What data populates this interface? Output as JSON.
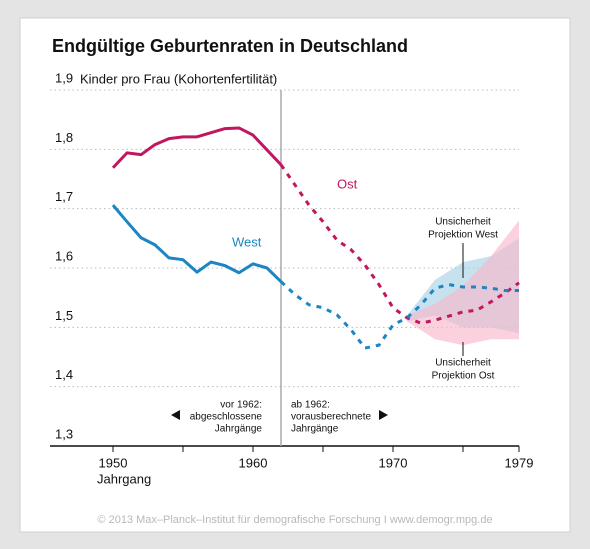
{
  "chart_data": {
    "type": "line",
    "title": "Endgültige Geburtenraten in Deutschland",
    "y_label": "Kinder pro Frau (Kohortenfertilität)",
    "x_label": "Jahrgang",
    "source": "© 2013 Max–Planck–Institut für demografische Forschung I www.demogr.mpg.de",
    "xlim": [
      1945.5,
      1979
    ],
    "xticks": [
      1950,
      1960,
      1970,
      1979
    ],
    "x_minor_ticks": [
      1955,
      1965,
      1975
    ],
    "ylim": [
      1.3,
      1.9
    ],
    "yticks": [
      {
        "value": 1.3,
        "label": "1,3"
      },
      {
        "value": 1.4,
        "label": "1,4"
      },
      {
        "value": 1.5,
        "label": "1,5"
      },
      {
        "value": 1.6,
        "label": "1,6"
      },
      {
        "value": 1.7,
        "label": "1,7"
      },
      {
        "value": 1.8,
        "label": "1,8"
      },
      {
        "value": 1.9,
        "label": "1,9"
      }
    ],
    "grid": true,
    "divider": 1962,
    "divider_notes": [
      {
        "lines": [
          "vor 1962:",
          "abgeschlossene",
          "Jahrgänge"
        ]
      },
      {
        "lines": [
          "ab 1962:",
          "vorausberechnete",
          "Jahrgänge"
        ]
      }
    ],
    "x": [
      1950,
      1951,
      1952,
      1953,
      1954,
      1955,
      1956,
      1957,
      1958,
      1959,
      1960,
      1961,
      1962,
      1963,
      1964,
      1965,
      1966,
      1967,
      1968,
      1969,
      1970,
      1971,
      1972,
      1973,
      1974,
      1975,
      1976,
      1977,
      1978,
      1979
    ],
    "series": [
      {
        "name": "Ost",
        "color": "#c0175e",
        "values": [
          1.769,
          1.794,
          1.791,
          1.808,
          1.818,
          1.821,
          1.821,
          1.828,
          1.835,
          1.836,
          1.824,
          1.799,
          1.774,
          1.74,
          1.706,
          1.678,
          1.647,
          1.631,
          1.605,
          1.572,
          1.533,
          1.516,
          1.507,
          1.512,
          1.519,
          1.526,
          1.529,
          1.543,
          1.558,
          1.575
        ]
      },
      {
        "name": "West",
        "color": "#1b86c2",
        "values": [
          1.706,
          1.678,
          1.651,
          1.639,
          1.617,
          1.614,
          1.593,
          1.61,
          1.604,
          1.592,
          1.607,
          1.6,
          1.577,
          1.555,
          1.538,
          1.533,
          1.521,
          1.496,
          1.465,
          1.47,
          1.504,
          1.516,
          1.538,
          1.566,
          1.572,
          1.568,
          1.568,
          1.566,
          1.562,
          1.562
        ]
      }
    ],
    "bands": [
      {
        "lines": [
          "Unsicherheit",
          "Projektion West"
        ],
        "color": "#a9d3e6",
        "x": [
          1971,
          1973,
          1975,
          1977,
          1979
        ],
        "lower": [
          1.51,
          1.52,
          1.5,
          1.5,
          1.49
        ],
        "upper": [
          1.52,
          1.58,
          1.61,
          1.62,
          1.65
        ]
      },
      {
        "lines": [
          "Unsicherheit",
          "Projektion Ost"
        ],
        "color": "#f7b9c9",
        "x": [
          1971,
          1973,
          1975,
          1977,
          1979
        ],
        "lower": [
          1.51,
          1.48,
          1.47,
          1.48,
          1.48
        ],
        "upper": [
          1.52,
          1.54,
          1.57,
          1.62,
          1.68
        ]
      }
    ]
  }
}
